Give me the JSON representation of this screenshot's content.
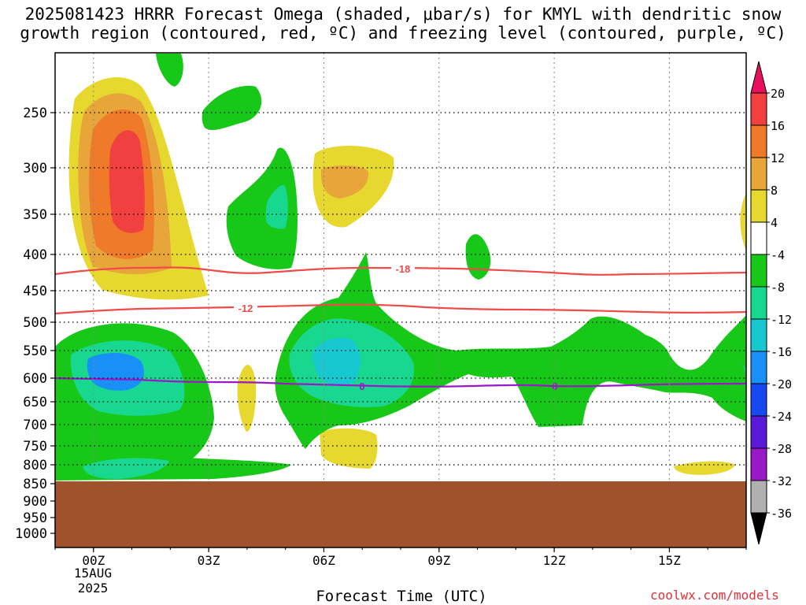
{
  "title": {
    "line1": "2025081423 HRRR Forecast Omega (shaded, μbar/s) for KMYL with dendritic snow",
    "line2": "growth region (contoured, red, ºC) and freezing level (contoured, purple, ºC)"
  },
  "xlabel": "Forecast Time (UTC)",
  "credit": "coolwx.com/models",
  "chart_data": {
    "type": "contour",
    "x_ticks": [
      "00Z",
      "03Z",
      "06Z",
      "09Z",
      "12Z",
      "15Z"
    ],
    "x_tick_hours": [
      0,
      3,
      6,
      9,
      12,
      15
    ],
    "x_date_label": [
      "15AUG",
      "2025"
    ],
    "xlim": [
      -1,
      17
    ],
    "y_ticks": [
      250,
      300,
      350,
      400,
      450,
      500,
      550,
      600,
      650,
      700,
      750,
      800,
      850,
      900,
      950,
      1000
    ],
    "y_scale": "pressure (log-like), inverted",
    "ground_level_hpa": 840,
    "colorbar": {
      "labels": [
        "20",
        "16",
        "12",
        "8",
        "4",
        "-4",
        "-8",
        "-12",
        "-16",
        "-20",
        "-24",
        "-28",
        "-32",
        "-36"
      ],
      "colors": [
        "#e8105c",
        "#f04040",
        "#ef7b2a",
        "#e7a53a",
        "#e6d82e",
        "#ffffff",
        "#18c818",
        "#18d890",
        "#18c8d0",
        "#1890f8",
        "#1848f0",
        "#5a18d8",
        "#9a18c8",
        "#b0b0b0",
        "#000000"
      ]
    },
    "contours": [
      {
        "label": "-18",
        "color": "#f04a4a",
        "approx_level_hpa": 425
      },
      {
        "label": "-12",
        "color": "#f04a4a",
        "approx_level_hpa": 490
      },
      {
        "label": "0",
        "color": "#9a18c8",
        "approx_level_hpa": 605
      },
      {
        "label": "0",
        "color": "#9a18c8",
        "approx_level_hpa": 610
      }
    ],
    "omega_regions": [
      {
        "center_hour": 0.5,
        "center_hpa": 310,
        "max_value": 18,
        "sign": "positive"
      },
      {
        "center_hour": 7.0,
        "center_hpa": 310,
        "max_value": 11,
        "sign": "positive"
      },
      {
        "center_hour": 0.5,
        "center_hpa": 580,
        "min_value": -18,
        "sign": "negative"
      },
      {
        "center_hour": 6.5,
        "center_hpa": 575,
        "min_value": -14,
        "sign": "negative"
      }
    ]
  }
}
